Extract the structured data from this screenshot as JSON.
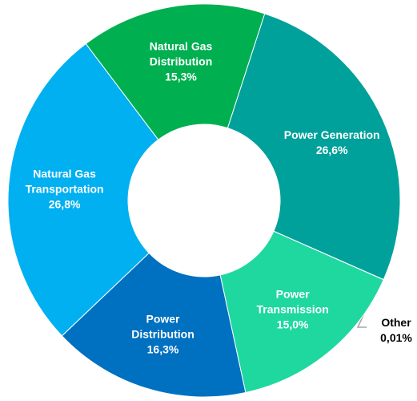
{
  "chart_data": {
    "type": "donut",
    "categories": [
      "Power Generation",
      "Other",
      "Power\nTransmission",
      "Power\nDistribution",
      "Natural Gas\nTransportation",
      "Natural Gas\nDistribution"
    ],
    "values": [
      26.6,
      0.01,
      15.0,
      16.3,
      26.8,
      15.3
    ],
    "value_labels": [
      "26,6%",
      "0,01%",
      "15,0%",
      "16,3%",
      "26,8%",
      "15,3%"
    ],
    "colors": [
      "#00a19a",
      "#a6a6a6",
      "#1ed8a0",
      "#0070c0",
      "#00b0f0",
      "#00b050"
    ]
  }
}
